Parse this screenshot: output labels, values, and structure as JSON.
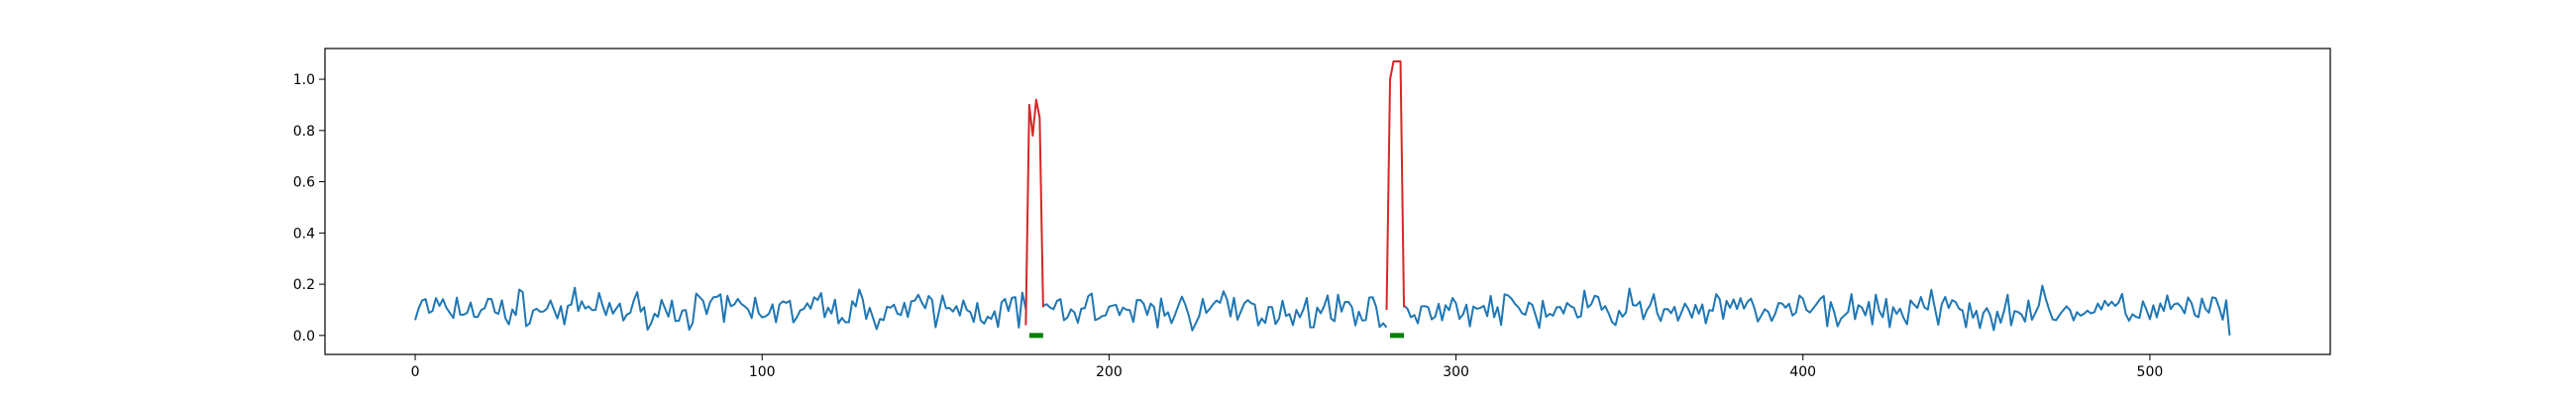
{
  "chart_data": {
    "type": "line",
    "title": "",
    "xlabel": "",
    "ylabel": "",
    "xlim": [
      -26,
      552
    ],
    "ylim": [
      -0.074,
      1.12
    ],
    "x_ticks": [
      0,
      100,
      200,
      300,
      400,
      500
    ],
    "y_ticks": [
      0.0,
      0.2,
      0.4,
      0.6,
      0.8,
      1.0
    ],
    "x_tick_labels": [
      "0",
      "100",
      "200",
      "300",
      "400",
      "500"
    ],
    "y_tick_labels": [
      "0.0",
      "0.2",
      "0.4",
      "0.6",
      "0.8",
      "1.0"
    ],
    "grid": false,
    "legend": "none",
    "noise": {
      "n_points": 524,
      "base": 0.1,
      "amplitude": 0.055,
      "seed": 7
    },
    "series": [
      {
        "color": "#1f77b4",
        "segments": [
          {
            "x_start": 0,
            "x_end": 176
          },
          {
            "x_start": 181,
            "x_end": 280
          },
          {
            "x_start": 285,
            "x_end": 523
          }
        ]
      },
      {
        "color": "#d62728",
        "segments": [
          {
            "points": [
              [
                176,
                0.04
              ],
              [
                177,
                0.9
              ],
              [
                178,
                0.78
              ],
              [
                179,
                0.92
              ],
              [
                180,
                0.85
              ],
              [
                181,
                0.11
              ]
            ]
          },
          {
            "points": [
              [
                280,
                0.1
              ],
              [
                281,
                1.0
              ],
              [
                282,
                1.07
              ],
              [
                283,
                1.07
              ],
              [
                284,
                1.07
              ],
              [
                285,
                0.11
              ]
            ]
          }
        ]
      }
    ],
    "markers": {
      "color": "#008000",
      "y": 0.0,
      "ranges": [
        [
          177,
          181
        ],
        [
          281,
          285
        ]
      ]
    },
    "final_point": {
      "x": 523,
      "y": 0.0
    }
  }
}
